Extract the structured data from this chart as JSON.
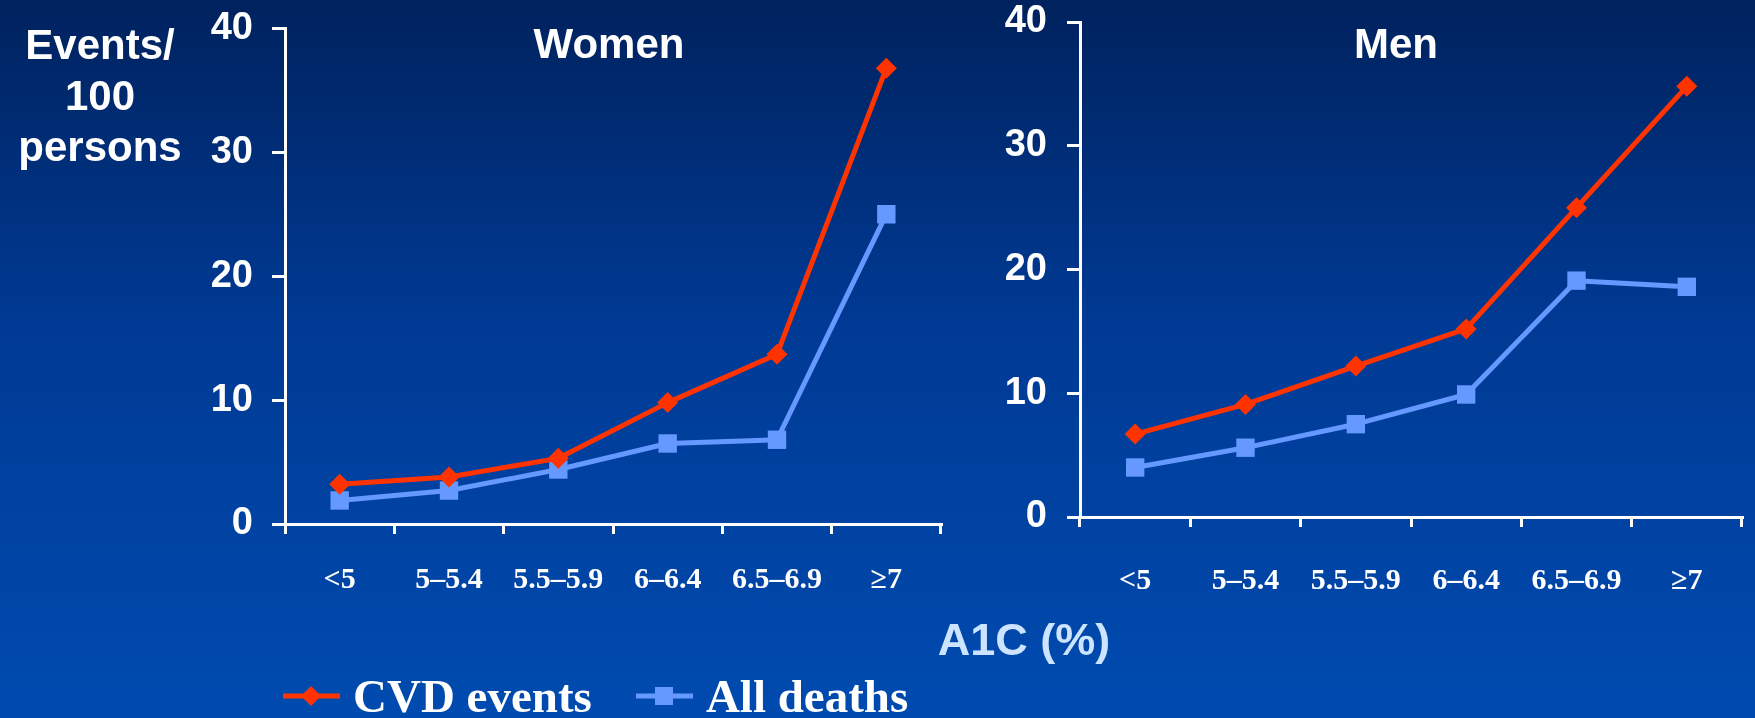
{
  "chart_data": [
    {
      "type": "line",
      "title": "Women",
      "ylabel": "Events/ 100 persons",
      "categories": [
        "<5",
        "5–5.4",
        "5.5–5.9",
        "6–6.4",
        "6.5–6.9",
        "≥7"
      ],
      "series": [
        {
          "name": "CVD events",
          "color": "#ff3300",
          "marker": "diamond",
          "values": [
            3.2,
            3.8,
            5.3,
            9.8,
            13.7,
            36.8
          ]
        },
        {
          "name": "All deaths",
          "color": "#6699ff",
          "marker": "square",
          "values": [
            1.9,
            2.7,
            4.4,
            6.5,
            6.8,
            25.0
          ]
        }
      ],
      "ylim": [
        0,
        40
      ],
      "yticks": [
        0,
        10,
        20,
        30,
        40
      ],
      "legend": "bottom"
    },
    {
      "type": "line",
      "title": "Men",
      "xlabel": "A1C (%)",
      "categories": [
        "<5",
        "5–5.4",
        "5.5–5.9",
        "6–6.4",
        "6.5–6.9",
        "≥7"
      ],
      "series": [
        {
          "name": "CVD events",
          "color": "#ff3300",
          "marker": "diamond",
          "values": [
            6.7,
            9.1,
            12.2,
            15.2,
            25.0,
            34.8
          ]
        },
        {
          "name": "All deaths",
          "color": "#6699ff",
          "marker": "square",
          "values": [
            4.0,
            5.6,
            7.5,
            9.9,
            19.1,
            18.6
          ]
        }
      ],
      "ylim": [
        0,
        40
      ],
      "yticks": [
        0,
        10,
        20,
        30,
        40
      ],
      "legend": "bottom"
    }
  ]
}
